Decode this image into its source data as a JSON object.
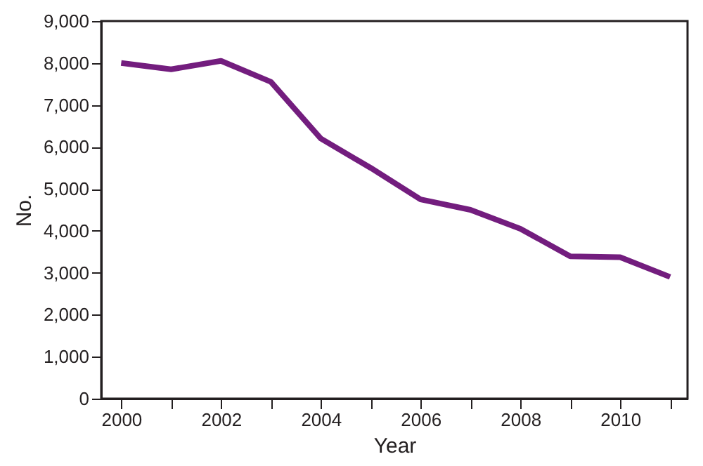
{
  "chart_data": {
    "type": "line",
    "xlabel": "Year",
    "ylabel": "No.",
    "x": [
      2000,
      2001,
      2002,
      2003,
      2004,
      2005,
      2006,
      2007,
      2008,
      2009,
      2010,
      2011
    ],
    "series": [
      {
        "color": "#731d7e",
        "values": [
          8000,
          7850,
          8050,
          7550,
          6200,
          5500,
          4750,
          4500,
          4050,
          3390,
          3370,
          2900
        ]
      }
    ],
    "xlim": [
      1999.6,
      2011.35
    ],
    "xticks": [
      2000,
      {
        "value": 2001,
        "label": null
      },
      2002,
      {
        "value": 2003,
        "label": null
      },
      2004,
      {
        "value": 2005,
        "label": null
      },
      2006,
      {
        "value": 2007,
        "label": null
      },
      2008,
      {
        "value": 2009,
        "label": null
      },
      2010,
      {
        "value": 2011,
        "label": null
      }
    ],
    "ylim": [
      0,
      9000
    ],
    "yticks": [
      {
        "value": 0,
        "label": "0"
      },
      {
        "value": 1000,
        "label": "1,000"
      },
      {
        "value": 2000,
        "label": "2,000"
      },
      {
        "value": 3000,
        "label": "3,000"
      },
      {
        "value": 4000,
        "label": "4,000"
      },
      {
        "value": 5000,
        "label": "5,000"
      },
      {
        "value": 6000,
        "label": "6,000"
      },
      {
        "value": 7000,
        "label": "7,000"
      },
      {
        "value": 8000,
        "label": "8,000"
      },
      {
        "value": 9000,
        "label": "9,000"
      }
    ],
    "grid": false,
    "marker": "none",
    "line_style": "solid"
  }
}
